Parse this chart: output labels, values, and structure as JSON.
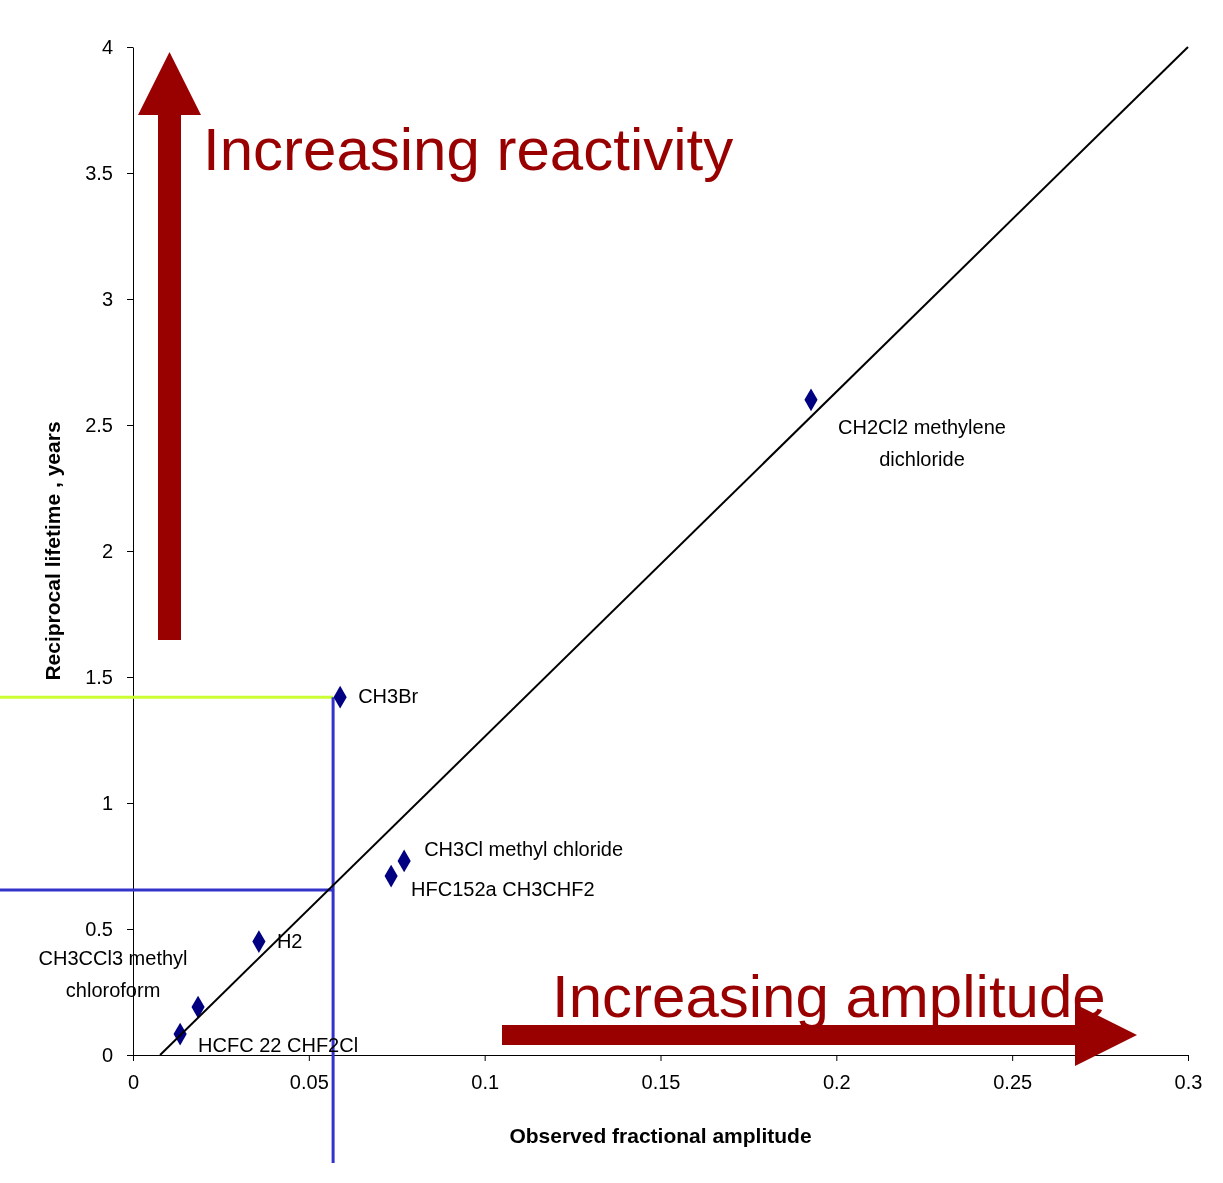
{
  "chart_data": {
    "type": "scatter",
    "xlabel": "Observed fractional amplitude",
    "ylabel": "Reciprocal lifetime , years",
    "xlim": [
      0,
      0.3
    ],
    "ylim": [
      0,
      4
    ],
    "xticks": [
      0,
      0.05,
      0.1,
      0.15,
      0.2,
      0.25,
      0.3
    ],
    "yticks": [
      0,
      0.5,
      1,
      1.5,
      2,
      2.5,
      3,
      3.5,
      4
    ],
    "grid": false,
    "marker": "diamond",
    "series": [
      {
        "color": "#000080",
        "x": [
          0.0134,
          0.0185,
          0.0358,
          0.0589,
          0.0734,
          0.0771,
          0.1928
        ],
        "values": [
          0.083,
          0.19,
          0.45,
          1.42,
          0.71,
          0.77,
          2.6
        ]
      },
      {
        "type": "line",
        "color": "#000000",
        "marker": "none",
        "x": [
          0.0077,
          0.3
        ],
        "values": [
          0,
          4
        ]
      }
    ],
    "ref_lines": [
      {
        "axis": "y",
        "value": 1.42,
        "color": "#ccff33"
      },
      {
        "axis": "y",
        "value": 0.655,
        "color": "#3333cc"
      },
      {
        "axis": "x",
        "value": 0.0569,
        "color": "#3333cc"
      }
    ],
    "annotations": [
      {
        "text": "HCFC 22 CHF2Cl",
        "x": 0.0134,
        "y": 0.083
      },
      {
        "text": "CH3CCl3 methyl chloroform",
        "x": 0.0185,
        "y": 0.19
      },
      {
        "text": "H2",
        "x": 0.0358,
        "y": 0.45
      },
      {
        "text": "CH3Br",
        "x": 0.0589,
        "y": 1.42
      },
      {
        "text": "HFC152a CH3CHF2",
        "x": 0.0734,
        "y": 0.71
      },
      {
        "text": "CH3Cl methyl chloride",
        "x": 0.0771,
        "y": 0.77
      },
      {
        "text": "CH2Cl2 methylene dichloride",
        "x": 0.1928,
        "y": 2.6
      },
      "Increasing reactivity",
      "Increasing amplitude"
    ]
  }
}
